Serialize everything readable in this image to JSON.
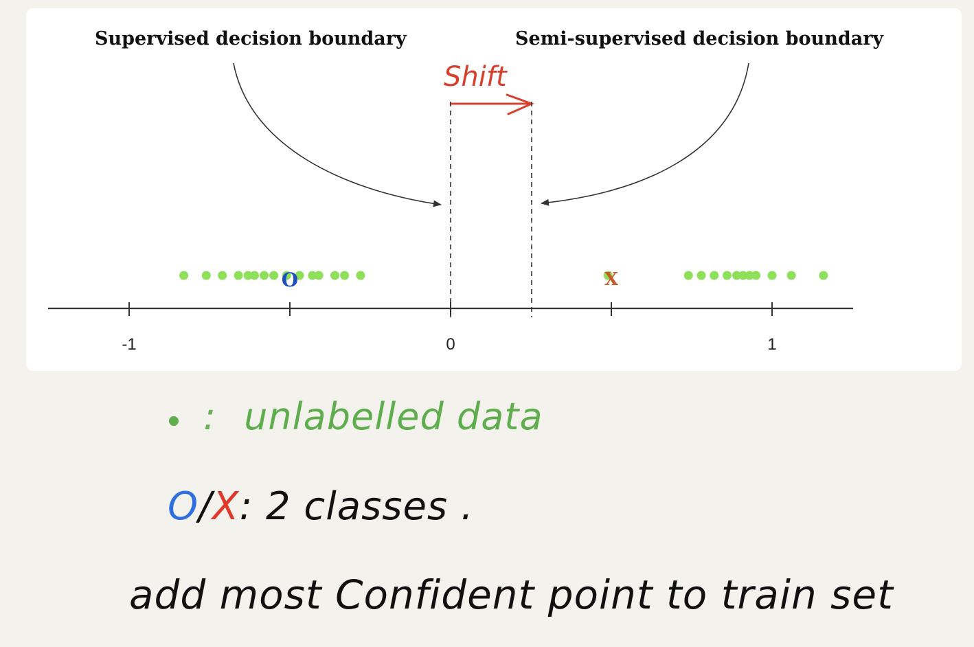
{
  "diagram": {
    "left_title": "Supervised decision boundary",
    "right_title": "Semi-supervised decision boundary",
    "shift_label": "Shift",
    "tick_labels": [
      "-1",
      "0",
      "1"
    ],
    "class_o_label": "O",
    "class_x_label": "X"
  },
  "chart_data": {
    "type": "scatter",
    "x_axis": {
      "ticks": [
        -1,
        -0.5,
        0,
        0.5,
        1
      ],
      "tick_labels": [
        "-1",
        "0",
        "1"
      ],
      "range": [
        -1.25,
        1.25
      ]
    },
    "unlabelled_points": [
      -0.83,
      -0.76,
      -0.71,
      -0.66,
      -0.63,
      -0.61,
      -0.58,
      -0.55,
      -0.51,
      -0.47,
      -0.43,
      -0.41,
      -0.36,
      -0.33,
      -0.28,
      0.49,
      0.74,
      0.78,
      0.82,
      0.86,
      0.89,
      0.91,
      0.93,
      0.95,
      1.0,
      1.06,
      1.16
    ],
    "labelled_points": [
      {
        "class": "O",
        "x": -0.5,
        "color": "#1f4fc0"
      },
      {
        "class": "X",
        "x": 0.5,
        "color": "#c85a2a"
      }
    ],
    "supervised_boundary": 0,
    "semi_supervised_boundary": 0.25,
    "colors": {
      "unlabelled": "#8ee05a",
      "arrow": "#333333",
      "shift": "#d8402e"
    }
  },
  "legend": {
    "unlabelled_colon": ":",
    "unlabelled_text": "unlabelled data",
    "classes_o": "O",
    "classes_slash": "/",
    "classes_x": "X",
    "classes_text": ":  2  classes .",
    "colors": {
      "green": "#5fad4e",
      "blue": "#2f6fe0",
      "red": "#e0392b"
    }
  },
  "note": {
    "text": "add  most  Confident  point  to  train  set"
  }
}
